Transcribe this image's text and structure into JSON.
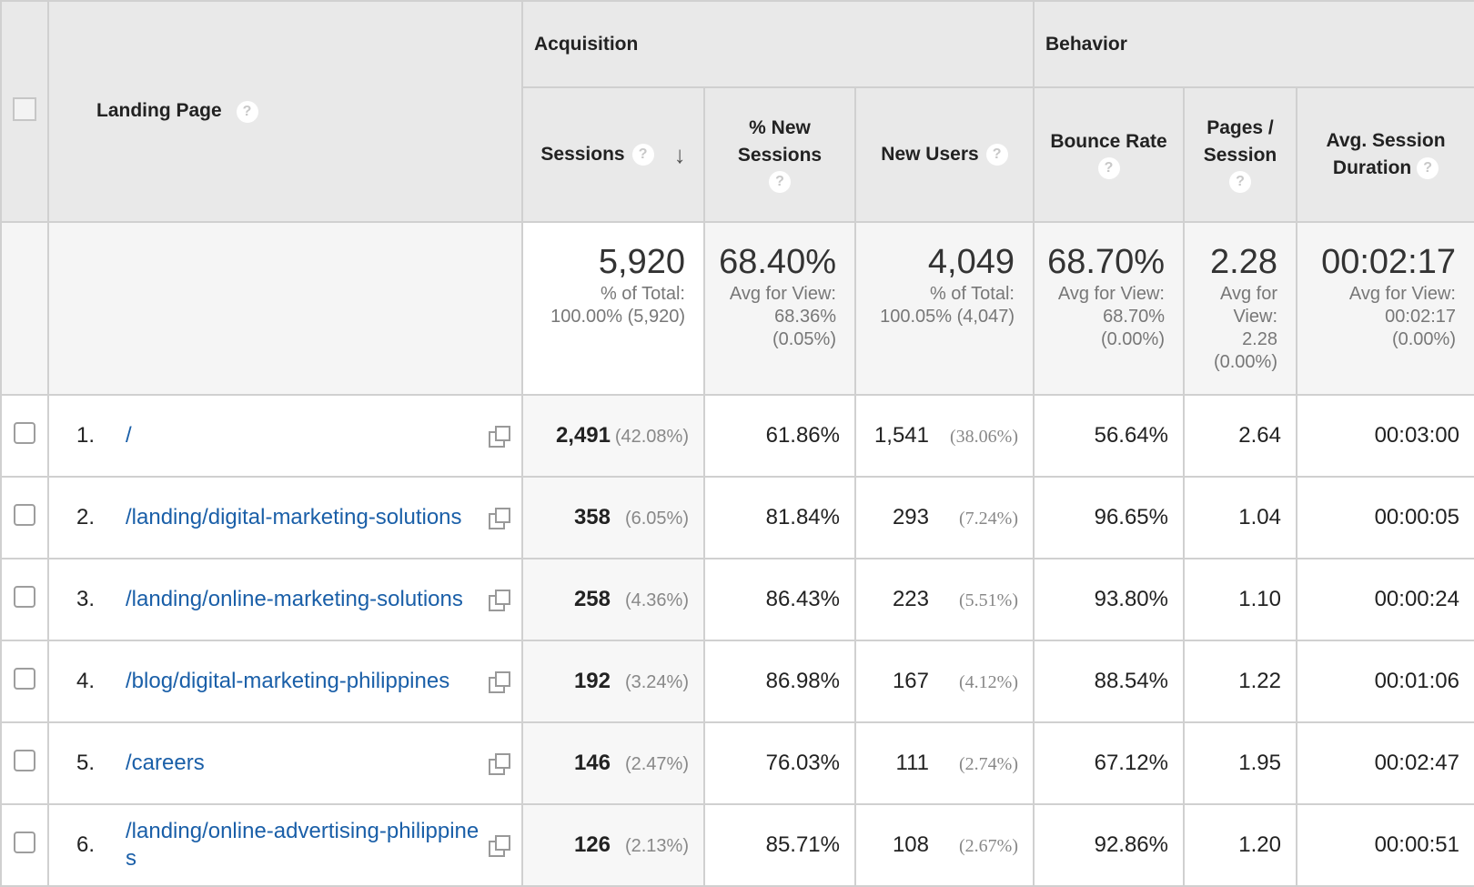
{
  "header": {
    "landing_page": "Landing Page",
    "acquisition": "Acquisition",
    "behavior": "Behavior",
    "help_glyph": "?",
    "sort_glyph": "↓",
    "columns": {
      "sessions": "Sessions",
      "new_sessions_1": "% New",
      "new_sessions_2": "Sessions",
      "new_users": "New Users",
      "bounce_rate": "Bounce Rate",
      "pages_session_1": "Pages /",
      "pages_session_2": "Session",
      "avg_duration_1": "Avg. Session",
      "avg_duration_2": "Duration"
    }
  },
  "totals": {
    "sessions": {
      "value": "5,920",
      "line1": "% of Total:",
      "line2": "100.00% (5,920)"
    },
    "new_sessions": {
      "value": "68.40%",
      "line1": "Avg for View:",
      "line2": "68.36%",
      "line3": "(0.05%)"
    },
    "new_users": {
      "value": "4,049",
      "line1": "% of Total:",
      "line2": "100.05% (4,047)"
    },
    "bounce_rate": {
      "value": "68.70%",
      "line1": "Avg for View:",
      "line2": "68.70%",
      "line3": "(0.00%)"
    },
    "pages_session": {
      "value": "2.28",
      "line1": "Avg for",
      "line2": "View:",
      "line3": "2.28",
      "line4": "(0.00%)"
    },
    "avg_duration": {
      "value": "00:02:17",
      "line1": "Avg for View:",
      "line2": "00:02:17",
      "line3": "(0.00%)"
    }
  },
  "rows": [
    {
      "rank": "1.",
      "page": "/",
      "sessions": "2,491",
      "sessions_pct": "(42.08%)",
      "new_sessions": "61.86%",
      "new_users": "1,541",
      "new_users_pct": "(38.06%)",
      "bounce_rate": "56.64%",
      "pages_session": "2.64",
      "avg_duration": "00:03:00"
    },
    {
      "rank": "2.",
      "page": "/landing/digital-marketing-solutions",
      "sessions": "358",
      "sessions_pct": "(6.05%)",
      "new_sessions": "81.84%",
      "new_users": "293",
      "new_users_pct": "(7.24%)",
      "bounce_rate": "96.65%",
      "pages_session": "1.04",
      "avg_duration": "00:00:05"
    },
    {
      "rank": "3.",
      "page": "/landing/online-marketing-solutions",
      "sessions": "258",
      "sessions_pct": "(4.36%)",
      "new_sessions": "86.43%",
      "new_users": "223",
      "new_users_pct": "(5.51%)",
      "bounce_rate": "93.80%",
      "pages_session": "1.10",
      "avg_duration": "00:00:24"
    },
    {
      "rank": "4.",
      "page": "/blog/digital-marketing-philippines",
      "sessions": "192",
      "sessions_pct": "(3.24%)",
      "new_sessions": "86.98%",
      "new_users": "167",
      "new_users_pct": "(4.12%)",
      "bounce_rate": "88.54%",
      "pages_session": "1.22",
      "avg_duration": "00:01:06"
    },
    {
      "rank": "5.",
      "page": "/careers",
      "sessions": "146",
      "sessions_pct": "(2.47%)",
      "new_sessions": "76.03%",
      "new_users": "111",
      "new_users_pct": "(2.74%)",
      "bounce_rate": "67.12%",
      "pages_session": "1.95",
      "avg_duration": "00:02:47"
    },
    {
      "rank": "6.",
      "page": "/landing/online-advertising-philippines",
      "sessions": "126",
      "sessions_pct": "(2.13%)",
      "new_sessions": "85.71%",
      "new_users": "108",
      "new_users_pct": "(2.67%)",
      "bounce_rate": "92.86%",
      "pages_session": "1.20",
      "avg_duration": "00:00:51"
    }
  ],
  "colors": {
    "link": "#1a5fa8",
    "header_bg": "#e9e9e9"
  }
}
